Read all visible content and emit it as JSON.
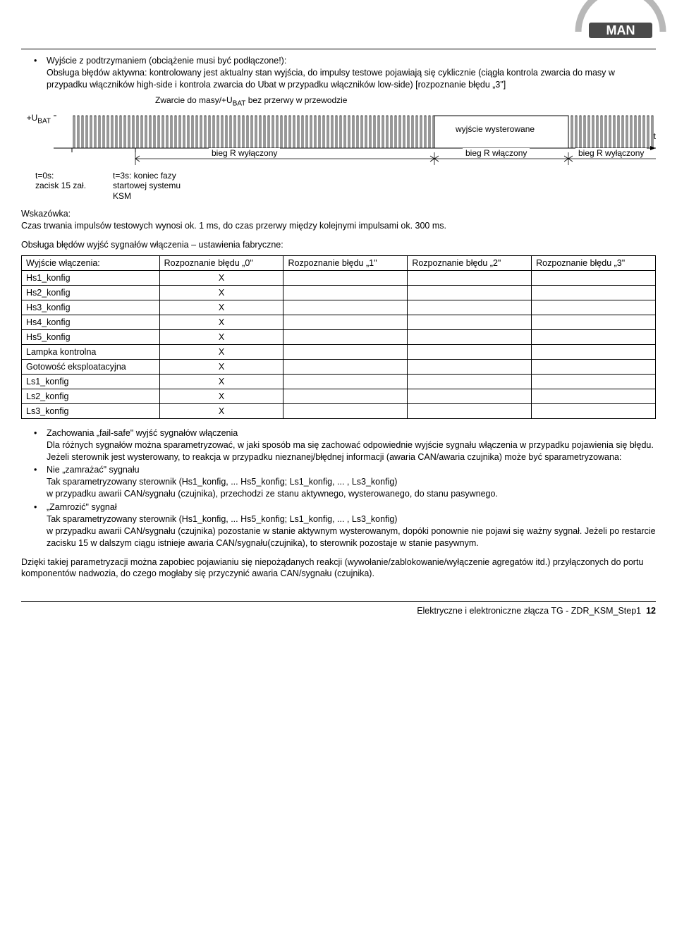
{
  "logo_text": "MAN",
  "bul1": "Wyjście z podtrzymaniem (obciążenie musi być podłączone!):",
  "bul1_cont": "Obsługa błędów aktywna: kontrolowany jest aktualny stan wyjścia, do impulsy testowe pojawiają się cyklicznie (ciągła kontrola zwarcia do masy w przypadku włączników high-side i kontrola zwarcia do Ubat w przypadku włączników low-side) [rozpoznanie błędu „3\"]",
  "diagram": {
    "caption": "Zwarcie do masy/+U",
    "caption_sub": "BAT",
    "caption_tail": " bez przerwy w przewodzie",
    "y_label": "+U",
    "y_label_sub": "BAT",
    "overlay_text": "wyjście wysterowane",
    "t_label": "t",
    "seg1": "bieg R wyłączony",
    "seg2": "bieg R włączony",
    "seg3": "bieg R wyłączony",
    "left_label": "t=0s:\nzacisk 15 zał.",
    "mid_label": "t=3s: koniec fazy\nstartowej systemu\nKSM",
    "background": "#ffffff",
    "line_color": "#000000"
  },
  "hint_title": "Wskazówka:",
  "hint_body": "Czas trwania impulsów testowych wynosi ok. 1 ms, do czas przerwy między kolejnymi impulsami ok. 300 ms.",
  "table_intro": "Obsługa błędów wyjść sygnałów włączenia – ustawienia fabryczne:",
  "table": {
    "headers": [
      "Wyjście włączenia:",
      "Rozpoznanie błędu „0\"",
      "Rozpoznanie błędu „1\"",
      "Rozpoznanie błędu „2\"",
      "Rozpoznanie błędu „3\""
    ],
    "rows": [
      [
        "Hs1_konfig",
        "X",
        "",
        "",
        ""
      ],
      [
        "Hs2_konfig",
        "X",
        "",
        "",
        ""
      ],
      [
        "Hs3_konfig",
        "X",
        "",
        "",
        ""
      ],
      [
        "Hs4_konfig",
        "X",
        "",
        "",
        ""
      ],
      [
        "Hs5_konfig",
        "X",
        "",
        "",
        ""
      ],
      [
        "Lampka kontrolna",
        "X",
        "",
        "",
        ""
      ],
      [
        "Gotowość eksploatacyjna",
        "X",
        "",
        "",
        ""
      ],
      [
        "Ls1_konfig",
        "X",
        "",
        "",
        ""
      ],
      [
        "Ls2_konfig",
        "X",
        "",
        "",
        ""
      ],
      [
        "Ls3_konfig",
        "X",
        "",
        "",
        ""
      ]
    ]
  },
  "b2_title": "Zachowania „fail-safe\" wyjść sygnałów włączenia",
  "b2_body": "Dla różnych sygnałów można sparametryzować, w jaki sposób ma się zachować odpowiednie wyjście sygnału włączenia w przypadku pojawienia się błędu. Jeżeli sterownik jest wysterowany, to reakcja w przypadku nieznanej/błędnej informacji (awaria CAN/awaria czujnika) może być sparametryzowana:",
  "b3_title": "Nie „zamrażać\" sygnału",
  "b3_l1": "Tak sparametryzowany sterownik (Hs1_konfig, ... Hs5_konfig; Ls1_konfig, ... , Ls3_konfig)",
  "b3_l2": "w przypadku awarii CAN/sygnału (czujnika), przechodzi ze stanu  aktywnego, wysterowanego, do stanu pasywnego.",
  "b4_title": "„Zamrozić\" sygnał",
  "b4_l1": "Tak sparametryzowany sterownik (Hs1_konfig, ... Hs5_konfig; Ls1_konfig, ... , Ls3_konfig)",
  "b4_l2": "w przypadku awarii CAN/sygnału (czujnika) pozostanie w stanie aktywnym wysterowanym, dopóki ponownie nie pojawi się ważny sygnał. Jeżeli po restarcie zacisku 15 w dalszym ciągu istnieje awaria CAN/sygnału(czujnika), to sterownik pozostaje w stanie pasywnym.",
  "closing": "Dzięki takiej parametryzacji można zapobiec pojawianiu się niepożądanych reakcji (wywołanie/zablokowanie/wyłączenie agregatów itd.) przyłączonych do portu komponentów nadwozia, do czego mogłaby się przyczynić awaria CAN/sygnału (czujnika).",
  "footer": "Elektryczne i elektroniczne złącza TG - ZDR_KSM_Step1",
  "page_num": "12"
}
